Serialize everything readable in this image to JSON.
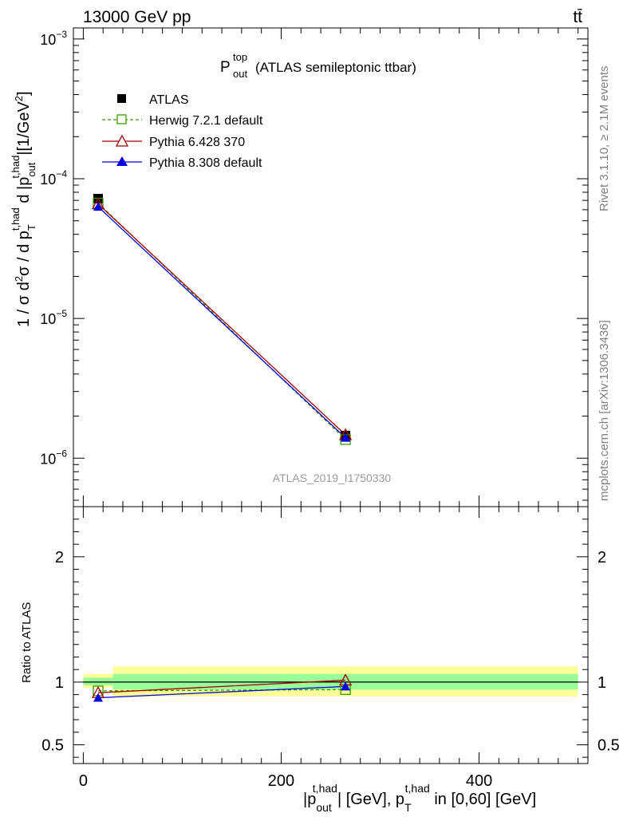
{
  "header": {
    "energy_label": "13000 GeV pp",
    "process_label": "tt̄"
  },
  "side_labels": {
    "rivet": "Rivet 3.1.10, ≥ 2.1M events",
    "mcplots": "mcplots.cern.ch [arXiv:1306.3436]"
  },
  "chart_data": [
    {
      "type": "line",
      "title_main": "P",
      "title_sup": "top",
      "title_sub": "out",
      "title_rest": "(ATLAS semileptonic ttbar)",
      "ylabel": "1 / σ d²σ / d p_T^{t,had} d |p_out^{t,had}| [1/GeV²]",
      "yscale": "log",
      "ylim": [
        4.5e-07,
        0.0012
      ],
      "xlim": [
        -10,
        510
      ],
      "watermark": "ATLAS_2019_I1750330",
      "y_ticks": [
        {
          "value": 1e-06,
          "base": "10",
          "exp": "−6"
        },
        {
          "value": 1e-05,
          "base": "10",
          "exp": "−5"
        },
        {
          "value": 0.0001,
          "base": "10",
          "exp": "−4"
        },
        {
          "value": 0.001,
          "base": "10",
          "exp": "−3"
        }
      ],
      "legend": [
        "ATLAS",
        "Herwig 7.2.1 default",
        "Pythia 6.428 370",
        "Pythia 8.308 default"
      ],
      "series": [
        {
          "name": "ATLAS",
          "color": "#000000",
          "marker": "square-filled",
          "x": [
            15,
            265
          ],
          "y": [
            7.2e-05,
            1.45e-06
          ]
        },
        {
          "name": "Herwig 7.2.1 default",
          "color": "#3a9a00",
          "marker": "square-open",
          "dashed": true,
          "x": [
            15,
            265
          ],
          "y": [
            6.7e-05,
            1.36e-06
          ]
        },
        {
          "name": "Pythia 6.428 370",
          "color": "#a00000",
          "marker": "triangle-open",
          "x": [
            15,
            265
          ],
          "y": [
            6.6e-05,
            1.47e-06
          ]
        },
        {
          "name": "Pythia 8.308 default",
          "color": "#0000e0",
          "marker": "triangle-filled",
          "x": [
            15,
            265
          ],
          "y": [
            6.3e-05,
            1.4e-06
          ]
        }
      ]
    },
    {
      "type": "line",
      "ylabel": "Ratio to ATLAS",
      "xlabel": "|p_out^{t,had}| [GeV], p_T^{t,had} in [0,60] [GeV]",
      "ylim": [
        0.35,
        2.4
      ],
      "xlim": [
        -10,
        510
      ],
      "x_ticks": [
        0,
        200,
        400
      ],
      "y_ticks": [
        0.5,
        1,
        2
      ],
      "bands": [
        {
          "x0": 0,
          "x1": 30,
          "yellow": [
            0.955,
            1.065
          ],
          "green": [
            0.975,
            1.035
          ]
        },
        {
          "x0": 30,
          "x1": 500,
          "yellow": [
            0.885,
            1.125
          ],
          "green": [
            0.94,
            1.065
          ]
        }
      ],
      "series": [
        {
          "name": "Herwig 7.2.1 default",
          "color": "#3a9a00",
          "marker": "square-open",
          "dashed": true,
          "x": [
            15,
            265
          ],
          "y": [
            0.93,
            0.94
          ]
        },
        {
          "name": "Pythia 6.428 370",
          "color": "#a00000",
          "marker": "triangle-open",
          "x": [
            15,
            265
          ],
          "y": [
            0.915,
            1.015
          ]
        },
        {
          "name": "Pythia 8.308 default",
          "color": "#0000e0",
          "marker": "triangle-filled",
          "x": [
            15,
            265
          ],
          "y": [
            0.875,
            0.965
          ]
        }
      ]
    }
  ]
}
